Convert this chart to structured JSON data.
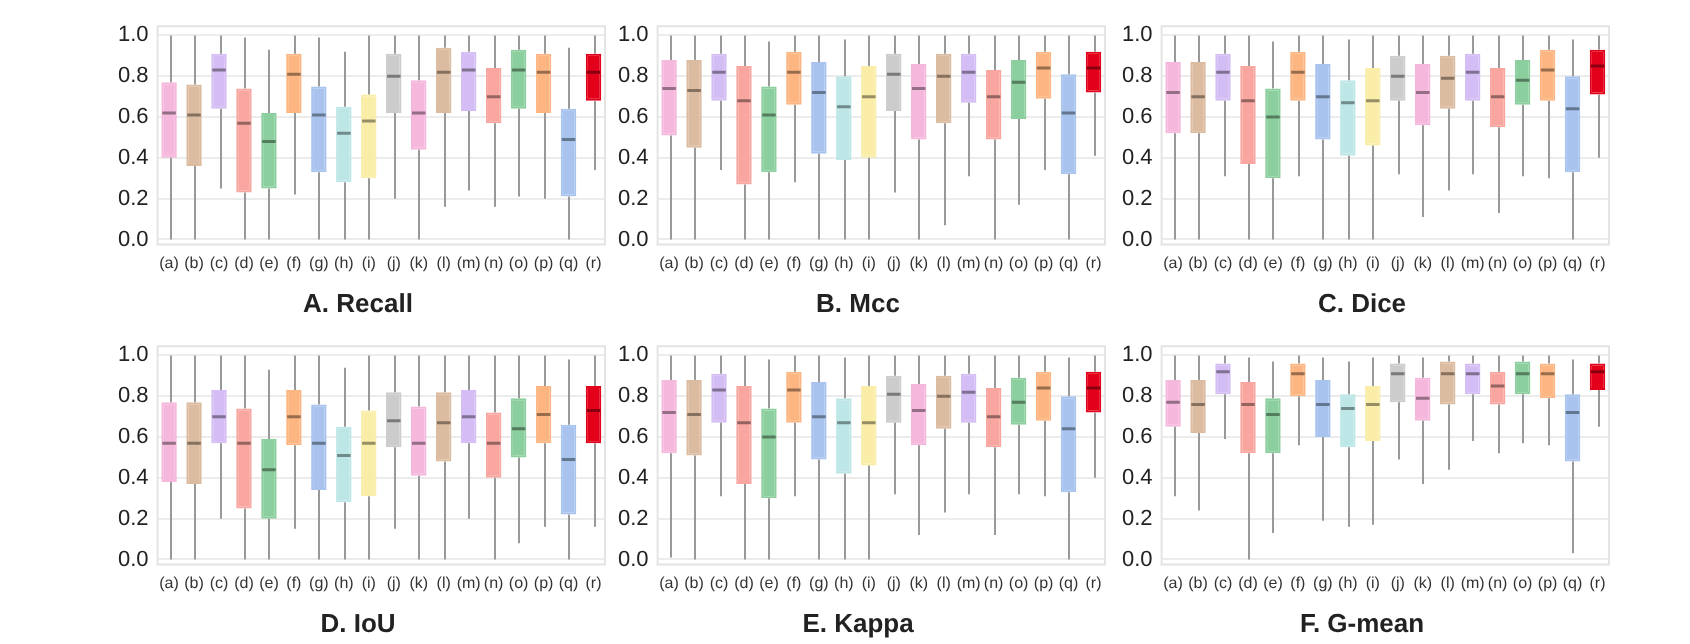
{
  "chart_data": [
    {
      "type": "box",
      "title": "A. Recall",
      "categories": [
        "(a)",
        "(b)",
        "(c)",
        "(d)",
        "(e)",
        "(f)",
        "(g)",
        "(h)",
        "(i)",
        "(j)",
        "(k)",
        "(l)",
        "(m)",
        "(n)",
        "(o)",
        "(p)",
        "(q)",
        "(r)"
      ],
      "colors": [
        "#f5b8dc",
        "#dcbca0",
        "#d4bdf4",
        "#f9a6a0",
        "#8ccf9e",
        "#fdb682",
        "#a8c4ee",
        "#bde6e6",
        "#faeda8",
        "#cccccc",
        "#f5b8dc",
        "#dcbca0",
        "#d4bdf4",
        "#f9a6a0",
        "#8ccf9e",
        "#fdb682",
        "#a8c4ee",
        "#e2001a"
      ],
      "boxes": [
        {
          "low": 0,
          "q1": 0.4,
          "median": 0.62,
          "q3": 0.77,
          "high": 1.0
        },
        {
          "low": 0,
          "q1": 0.36,
          "median": 0.61,
          "q3": 0.76,
          "high": 1.0
        },
        {
          "low": 0.25,
          "q1": 0.64,
          "median": 0.83,
          "q3": 0.91,
          "high": 1.0
        },
        {
          "low": 0,
          "q1": 0.23,
          "median": 0.57,
          "q3": 0.74,
          "high": 0.99
        },
        {
          "low": 0,
          "q1": 0.25,
          "median": 0.48,
          "q3": 0.62,
          "high": 0.93
        },
        {
          "low": 0.22,
          "q1": 0.62,
          "median": 0.81,
          "q3": 0.91,
          "high": 1.0
        },
        {
          "low": 0,
          "q1": 0.33,
          "median": 0.61,
          "q3": 0.75,
          "high": 0.99
        },
        {
          "low": 0,
          "q1": 0.28,
          "median": 0.52,
          "q3": 0.65,
          "high": 0.92
        },
        {
          "low": 0,
          "q1": 0.3,
          "median": 0.58,
          "q3": 0.71,
          "high": 1.0
        },
        {
          "low": 0.2,
          "q1": 0.62,
          "median": 0.8,
          "q3": 0.91,
          "high": 1.0
        },
        {
          "low": 0,
          "q1": 0.44,
          "median": 0.62,
          "q3": 0.78,
          "high": 1.0
        },
        {
          "low": 0.16,
          "q1": 0.62,
          "median": 0.82,
          "q3": 0.94,
          "high": 1.0
        },
        {
          "low": 0.24,
          "q1": 0.63,
          "median": 0.83,
          "q3": 0.92,
          "high": 1.0
        },
        {
          "low": 0.16,
          "q1": 0.57,
          "median": 0.7,
          "q3": 0.84,
          "high": 1.0
        },
        {
          "low": 0.21,
          "q1": 0.64,
          "median": 0.83,
          "q3": 0.93,
          "high": 1.0
        },
        {
          "low": 0.2,
          "q1": 0.62,
          "median": 0.82,
          "q3": 0.91,
          "high": 1.0
        },
        {
          "low": 0,
          "q1": 0.21,
          "median": 0.49,
          "q3": 0.64,
          "high": 0.94
        },
        {
          "low": 0.34,
          "q1": 0.68,
          "median": 0.82,
          "q3": 0.91,
          "high": 1.0
        }
      ],
      "ylim": [
        -0.03,
        1.05
      ],
      "yticks": [
        {
          "value": 0,
          "label": "0.0"
        },
        {
          "value": 0.2,
          "label": "0.2"
        },
        {
          "value": 0.4,
          "label": "0.4"
        },
        {
          "value": 0.6,
          "label": "0.6"
        },
        {
          "value": 0.8,
          "label": "0.8"
        },
        {
          "value": 1,
          "label": "1.0"
        }
      ],
      "grid": "y"
    },
    {
      "type": "box",
      "title": "B. Mcc",
      "categories": [
        "(a)",
        "(b)",
        "(c)",
        "(d)",
        "(e)",
        "(f)",
        "(g)",
        "(h)",
        "(i)",
        "(j)",
        "(k)",
        "(l)",
        "(m)",
        "(n)",
        "(o)",
        "(p)",
        "(q)",
        "(r)"
      ],
      "colors": [
        "#f5b8dc",
        "#dcbca0",
        "#d4bdf4",
        "#f9a6a0",
        "#8ccf9e",
        "#fdb682",
        "#a8c4ee",
        "#bde6e6",
        "#faeda8",
        "#cccccc",
        "#f5b8dc",
        "#dcbca0",
        "#d4bdf4",
        "#f9a6a0",
        "#8ccf9e",
        "#fdb682",
        "#a8c4ee",
        "#e2001a"
      ],
      "boxes": [
        {
          "low": 0,
          "q1": 0.51,
          "median": 0.74,
          "q3": 0.88,
          "high": 1.0
        },
        {
          "low": 0,
          "q1": 0.45,
          "median": 0.73,
          "q3": 0.88,
          "high": 1.0
        },
        {
          "low": 0.34,
          "q1": 0.68,
          "median": 0.82,
          "q3": 0.91,
          "high": 1.0
        },
        {
          "low": 0,
          "q1": 0.27,
          "median": 0.68,
          "q3": 0.85,
          "high": 1.0
        },
        {
          "low": 0,
          "q1": 0.33,
          "median": 0.61,
          "q3": 0.75,
          "high": 0.97
        },
        {
          "low": 0.28,
          "q1": 0.66,
          "median": 0.82,
          "q3": 0.92,
          "high": 1.0
        },
        {
          "low": 0,
          "q1": 0.42,
          "median": 0.72,
          "q3": 0.87,
          "high": 1.0
        },
        {
          "low": 0,
          "q1": 0.39,
          "median": 0.65,
          "q3": 0.8,
          "high": 0.98
        },
        {
          "low": 0,
          "q1": 0.4,
          "median": 0.7,
          "q3": 0.85,
          "high": 1.0
        },
        {
          "low": 0.23,
          "q1": 0.63,
          "median": 0.81,
          "q3": 0.91,
          "high": 1.0
        },
        {
          "low": 0,
          "q1": 0.49,
          "median": 0.74,
          "q3": 0.86,
          "high": 1.0
        },
        {
          "low": 0.07,
          "q1": 0.57,
          "median": 0.8,
          "q3": 0.91,
          "high": 1.0
        },
        {
          "low": 0.31,
          "q1": 0.67,
          "median": 0.82,
          "q3": 0.91,
          "high": 1.0
        },
        {
          "low": 0,
          "q1": 0.49,
          "median": 0.7,
          "q3": 0.83,
          "high": 1.0
        },
        {
          "low": 0.17,
          "q1": 0.59,
          "median": 0.77,
          "q3": 0.88,
          "high": 1.0
        },
        {
          "low": 0.34,
          "q1": 0.69,
          "median": 0.84,
          "q3": 0.92,
          "high": 1.0
        },
        {
          "low": 0,
          "q1": 0.32,
          "median": 0.62,
          "q3": 0.81,
          "high": 1.0
        },
        {
          "low": 0.41,
          "q1": 0.72,
          "median": 0.84,
          "q3": 0.92,
          "high": 1.0
        }
      ],
      "ylim": [
        -0.03,
        1.05
      ],
      "yticks": [
        {
          "value": 0,
          "label": "0.0"
        },
        {
          "value": 0.2,
          "label": "0.2"
        },
        {
          "value": 0.4,
          "label": "0.4"
        },
        {
          "value": 0.6,
          "label": "0.6"
        },
        {
          "value": 0.8,
          "label": "0.8"
        },
        {
          "value": 1,
          "label": "1.0"
        }
      ],
      "grid": "y"
    },
    {
      "type": "box",
      "title": "C. Dice",
      "categories": [
        "(a)",
        "(b)",
        "(c)",
        "(d)",
        "(e)",
        "(f)",
        "(g)",
        "(h)",
        "(i)",
        "(j)",
        "(k)",
        "(l)",
        "(m)",
        "(n)",
        "(o)",
        "(p)",
        "(q)",
        "(r)"
      ],
      "colors": [
        "#f5b8dc",
        "#dcbca0",
        "#d4bdf4",
        "#f9a6a0",
        "#8ccf9e",
        "#fdb682",
        "#a8c4ee",
        "#bde6e6",
        "#faeda8",
        "#cccccc",
        "#f5b8dc",
        "#dcbca0",
        "#d4bdf4",
        "#f9a6a0",
        "#8ccf9e",
        "#fdb682",
        "#a8c4ee",
        "#e2001a"
      ],
      "boxes": [
        {
          "low": 0,
          "q1": 0.52,
          "median": 0.72,
          "q3": 0.87,
          "high": 1.0
        },
        {
          "low": 0,
          "q1": 0.52,
          "median": 0.7,
          "q3": 0.87,
          "high": 1.0
        },
        {
          "low": 0.31,
          "q1": 0.68,
          "median": 0.82,
          "q3": 0.91,
          "high": 1.0
        },
        {
          "low": 0,
          "q1": 0.37,
          "median": 0.68,
          "q3": 0.85,
          "high": 1.0
        },
        {
          "low": 0,
          "q1": 0.3,
          "median": 0.6,
          "q3": 0.74,
          "high": 0.97
        },
        {
          "low": 0.31,
          "q1": 0.68,
          "median": 0.82,
          "q3": 0.92,
          "high": 1.0
        },
        {
          "low": 0,
          "q1": 0.49,
          "median": 0.7,
          "q3": 0.86,
          "high": 1.0
        },
        {
          "low": 0,
          "q1": 0.41,
          "median": 0.67,
          "q3": 0.78,
          "high": 0.98
        },
        {
          "low": 0,
          "q1": 0.46,
          "median": 0.68,
          "q3": 0.84,
          "high": 1.0
        },
        {
          "low": 0.32,
          "q1": 0.68,
          "median": 0.8,
          "q3": 0.9,
          "high": 1.0
        },
        {
          "low": 0.11,
          "q1": 0.56,
          "median": 0.72,
          "q3": 0.86,
          "high": 1.0
        },
        {
          "low": 0.24,
          "q1": 0.64,
          "median": 0.79,
          "q3": 0.9,
          "high": 1.0
        },
        {
          "low": 0.32,
          "q1": 0.68,
          "median": 0.82,
          "q3": 0.91,
          "high": 1.0
        },
        {
          "low": 0.13,
          "q1": 0.55,
          "median": 0.7,
          "q3": 0.84,
          "high": 1.0
        },
        {
          "low": 0.31,
          "q1": 0.66,
          "median": 0.78,
          "q3": 0.88,
          "high": 1.0
        },
        {
          "low": 0.3,
          "q1": 0.68,
          "median": 0.83,
          "q3": 0.93,
          "high": 1.0
        },
        {
          "low": 0,
          "q1": 0.33,
          "median": 0.64,
          "q3": 0.8,
          "high": 0.98
        },
        {
          "low": 0.4,
          "q1": 0.71,
          "median": 0.85,
          "q3": 0.93,
          "high": 1.0
        }
      ],
      "ylim": [
        -0.03,
        1.05
      ],
      "yticks": [
        {
          "value": 0,
          "label": "0.0"
        },
        {
          "value": 0.2,
          "label": "0.2"
        },
        {
          "value": 0.4,
          "label": "0.4"
        },
        {
          "value": 0.6,
          "label": "0.6"
        },
        {
          "value": 0.8,
          "label": "0.8"
        },
        {
          "value": 1,
          "label": "1.0"
        }
      ],
      "grid": "y"
    },
    {
      "type": "box",
      "title": "D. IoU",
      "categories": [
        "(a)",
        "(b)",
        "(c)",
        "(d)",
        "(e)",
        "(f)",
        "(g)",
        "(h)",
        "(i)",
        "(j)",
        "(k)",
        "(l)",
        "(m)",
        "(n)",
        "(o)",
        "(p)",
        "(q)",
        "(r)"
      ],
      "colors": [
        "#f5b8dc",
        "#dcbca0",
        "#d4bdf4",
        "#f9a6a0",
        "#8ccf9e",
        "#fdb682",
        "#a8c4ee",
        "#bde6e6",
        "#faeda8",
        "#cccccc",
        "#f5b8dc",
        "#dcbca0",
        "#d4bdf4",
        "#f9a6a0",
        "#8ccf9e",
        "#fdb682",
        "#a8c4ee",
        "#e2001a"
      ],
      "boxes": [
        {
          "low": 0,
          "q1": 0.38,
          "median": 0.57,
          "q3": 0.77,
          "high": 1.0
        },
        {
          "low": 0,
          "q1": 0.37,
          "median": 0.57,
          "q3": 0.77,
          "high": 1.0
        },
        {
          "low": 0.2,
          "q1": 0.57,
          "median": 0.7,
          "q3": 0.83,
          "high": 1.0
        },
        {
          "low": 0,
          "q1": 0.25,
          "median": 0.57,
          "q3": 0.74,
          "high": 1.0
        },
        {
          "low": 0,
          "q1": 0.2,
          "median": 0.44,
          "q3": 0.59,
          "high": 0.93
        },
        {
          "low": 0.15,
          "q1": 0.56,
          "median": 0.7,
          "q3": 0.83,
          "high": 1.0
        },
        {
          "low": 0,
          "q1": 0.34,
          "median": 0.57,
          "q3": 0.76,
          "high": 1.0
        },
        {
          "low": 0,
          "q1": 0.28,
          "median": 0.51,
          "q3": 0.65,
          "high": 0.94
        },
        {
          "low": 0,
          "q1": 0.31,
          "median": 0.57,
          "q3": 0.73,
          "high": 1.0
        },
        {
          "low": 0.15,
          "q1": 0.55,
          "median": 0.68,
          "q3": 0.82,
          "high": 1.0
        },
        {
          "low": 0,
          "q1": 0.41,
          "median": 0.57,
          "q3": 0.75,
          "high": 1.0
        },
        {
          "low": 0,
          "q1": 0.48,
          "median": 0.67,
          "q3": 0.82,
          "high": 1.0
        },
        {
          "low": 0.2,
          "q1": 0.57,
          "median": 0.7,
          "q3": 0.83,
          "high": 1.0
        },
        {
          "low": 0,
          "q1": 0.4,
          "median": 0.57,
          "q3": 0.72,
          "high": 1.0
        },
        {
          "low": 0.08,
          "q1": 0.5,
          "median": 0.64,
          "q3": 0.79,
          "high": 1.0
        },
        {
          "low": 0.16,
          "q1": 0.57,
          "median": 0.71,
          "q3": 0.85,
          "high": 1.0
        },
        {
          "low": 0,
          "q1": 0.22,
          "median": 0.49,
          "q3": 0.66,
          "high": 0.98
        },
        {
          "low": 0.16,
          "q1": 0.57,
          "median": 0.73,
          "q3": 0.85,
          "high": 1.0
        }
      ],
      "ylim": [
        -0.03,
        1.05
      ],
      "yticks": [
        {
          "value": 0,
          "label": "0.0"
        },
        {
          "value": 0.2,
          "label": "0.2"
        },
        {
          "value": 0.4,
          "label": "0.4"
        },
        {
          "value": 0.6,
          "label": "0.6"
        },
        {
          "value": 0.8,
          "label": "0.8"
        },
        {
          "value": 1,
          "label": "1.0"
        }
      ],
      "grid": "y"
    },
    {
      "type": "box",
      "title": "E. Kappa",
      "categories": [
        "(a)",
        "(b)",
        "(c)",
        "(d)",
        "(e)",
        "(f)",
        "(g)",
        "(h)",
        "(i)",
        "(j)",
        "(k)",
        "(l)",
        "(m)",
        "(n)",
        "(o)",
        "(p)",
        "(q)",
        "(r)"
      ],
      "colors": [
        "#f5b8dc",
        "#dcbca0",
        "#d4bdf4",
        "#f9a6a0",
        "#8ccf9e",
        "#fdb682",
        "#a8c4ee",
        "#bde6e6",
        "#faeda8",
        "#cccccc",
        "#f5b8dc",
        "#dcbca0",
        "#d4bdf4",
        "#f9a6a0",
        "#8ccf9e",
        "#fdb682",
        "#a8c4ee",
        "#e2001a"
      ],
      "boxes": [
        {
          "low": 0.01,
          "q1": 0.52,
          "median": 0.72,
          "q3": 0.88,
          "high": 1.0
        },
        {
          "low": 0,
          "q1": 0.51,
          "median": 0.71,
          "q3": 0.88,
          "high": 1.0
        },
        {
          "low": 0.31,
          "q1": 0.67,
          "median": 0.83,
          "q3": 0.91,
          "high": 1.0
        },
        {
          "low": 0,
          "q1": 0.37,
          "median": 0.67,
          "q3": 0.85,
          "high": 1.0
        },
        {
          "low": 0,
          "q1": 0.3,
          "median": 0.6,
          "q3": 0.74,
          "high": 0.98
        },
        {
          "low": 0.31,
          "q1": 0.67,
          "median": 0.83,
          "q3": 0.92,
          "high": 1.0
        },
        {
          "low": 0,
          "q1": 0.49,
          "median": 0.7,
          "q3": 0.87,
          "high": 1.0
        },
        {
          "low": 0,
          "q1": 0.42,
          "median": 0.67,
          "q3": 0.79,
          "high": 0.99
        },
        {
          "low": 0,
          "q1": 0.46,
          "median": 0.67,
          "q3": 0.85,
          "high": 1.0
        },
        {
          "low": 0.32,
          "q1": 0.67,
          "median": 0.81,
          "q3": 0.9,
          "high": 1.0
        },
        {
          "low": 0.12,
          "q1": 0.56,
          "median": 0.73,
          "q3": 0.86,
          "high": 1.0
        },
        {
          "low": 0.23,
          "q1": 0.64,
          "median": 0.8,
          "q3": 0.9,
          "high": 1.0
        },
        {
          "low": 0.32,
          "q1": 0.67,
          "median": 0.82,
          "q3": 0.91,
          "high": 1.0
        },
        {
          "low": 0.12,
          "q1": 0.55,
          "median": 0.7,
          "q3": 0.84,
          "high": 1.0
        },
        {
          "low": 0.32,
          "q1": 0.66,
          "median": 0.77,
          "q3": 0.89,
          "high": 1.0
        },
        {
          "low": 0.31,
          "q1": 0.68,
          "median": 0.84,
          "q3": 0.92,
          "high": 1.0
        },
        {
          "low": 0,
          "q1": 0.33,
          "median": 0.64,
          "q3": 0.8,
          "high": 0.99
        },
        {
          "low": 0.4,
          "q1": 0.72,
          "median": 0.84,
          "q3": 0.92,
          "high": 1.0
        }
      ],
      "ylim": [
        -0.03,
        1.05
      ],
      "yticks": [
        {
          "value": 0,
          "label": "0.0"
        },
        {
          "value": 0.2,
          "label": "0.2"
        },
        {
          "value": 0.4,
          "label": "0.4"
        },
        {
          "value": 0.6,
          "label": "0.6"
        },
        {
          "value": 0.8,
          "label": "0.8"
        },
        {
          "value": 1,
          "label": "1.0"
        }
      ],
      "grid": "y"
    },
    {
      "type": "box",
      "title": "F. G-mean",
      "categories": [
        "(a)",
        "(b)",
        "(c)",
        "(d)",
        "(e)",
        "(f)",
        "(g)",
        "(h)",
        "(i)",
        "(j)",
        "(k)",
        "(l)",
        "(m)",
        "(n)",
        "(o)",
        "(p)",
        "(q)",
        "(r)"
      ],
      "colors": [
        "#f5b8dc",
        "#dcbca0",
        "#d4bdf4",
        "#f9a6a0",
        "#8ccf9e",
        "#fdb682",
        "#a8c4ee",
        "#bde6e6",
        "#faeda8",
        "#cccccc",
        "#f5b8dc",
        "#dcbca0",
        "#d4bdf4",
        "#f9a6a0",
        "#8ccf9e",
        "#fdb682",
        "#a8c4ee",
        "#e2001a"
      ],
      "boxes": [
        {
          "low": 0.31,
          "q1": 0.65,
          "median": 0.77,
          "q3": 0.88,
          "high": 1.0
        },
        {
          "low": 0.24,
          "q1": 0.62,
          "median": 0.76,
          "q3": 0.88,
          "high": 1.0
        },
        {
          "low": 0.59,
          "q1": 0.81,
          "median": 0.92,
          "q3": 0.96,
          "high": 1.0
        },
        {
          "low": 0,
          "q1": 0.52,
          "median": 0.76,
          "q3": 0.87,
          "high": 0.99
        },
        {
          "low": 0.13,
          "q1": 0.52,
          "median": 0.71,
          "q3": 0.79,
          "high": 0.97
        },
        {
          "low": 0.56,
          "q1": 0.8,
          "median": 0.91,
          "q3": 0.96,
          "high": 1.0
        },
        {
          "low": 0.19,
          "q1": 0.6,
          "median": 0.76,
          "q3": 0.88,
          "high": 0.99
        },
        {
          "low": 0.16,
          "q1": 0.55,
          "median": 0.74,
          "q3": 0.81,
          "high": 0.97
        },
        {
          "low": 0.17,
          "q1": 0.58,
          "median": 0.76,
          "q3": 0.85,
          "high": 0.99
        },
        {
          "low": 0.49,
          "q1": 0.77,
          "median": 0.91,
          "q3": 0.96,
          "high": 1.0
        },
        {
          "low": 0.37,
          "q1": 0.68,
          "median": 0.79,
          "q3": 0.89,
          "high": 0.99
        },
        {
          "low": 0.44,
          "q1": 0.76,
          "median": 0.91,
          "q3": 0.97,
          "high": 1.0
        },
        {
          "low": 0.58,
          "q1": 0.81,
          "median": 0.91,
          "q3": 0.96,
          "high": 1.0
        },
        {
          "low": 0.52,
          "q1": 0.76,
          "median": 0.85,
          "q3": 0.92,
          "high": 1.0
        },
        {
          "low": 0.57,
          "q1": 0.81,
          "median": 0.91,
          "q3": 0.97,
          "high": 1.0
        },
        {
          "low": 0.56,
          "q1": 0.79,
          "median": 0.91,
          "q3": 0.96,
          "high": 1.0
        },
        {
          "low": 0.03,
          "q1": 0.48,
          "median": 0.72,
          "q3": 0.81,
          "high": 0.98
        },
        {
          "low": 0.65,
          "q1": 0.83,
          "median": 0.92,
          "q3": 0.96,
          "high": 1.0
        }
      ],
      "ylim": [
        -0.03,
        1.05
      ],
      "yticks": [
        {
          "value": 0,
          "label": "0.0"
        },
        {
          "value": 0.2,
          "label": "0.2"
        },
        {
          "value": 0.4,
          "label": "0.4"
        },
        {
          "value": 0.6,
          "label": "0.6"
        },
        {
          "value": 0.8,
          "label": "0.8"
        },
        {
          "value": 1,
          "label": "1.0"
        }
      ],
      "grid": "y"
    }
  ]
}
